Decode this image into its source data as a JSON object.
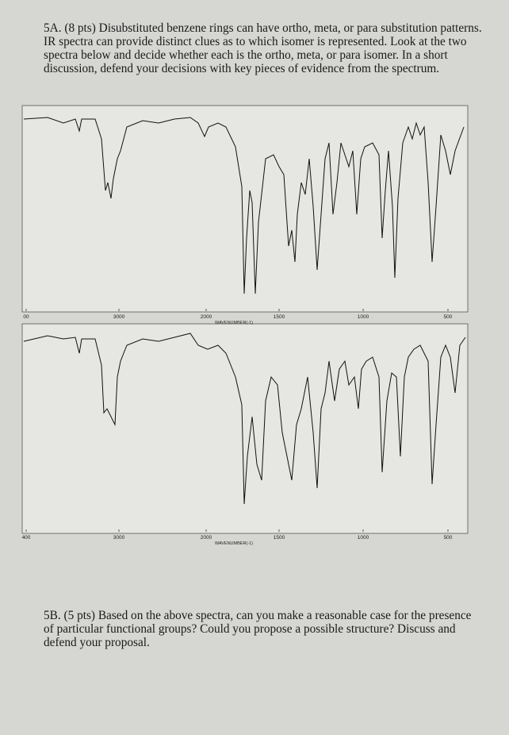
{
  "question_a": {
    "text": "5A. (8 pts) Disubstituted benzene rings can have ortho, meta, or para substitution patterns. IR spectra can provide distinct clues as to which isomer is represented. Look at the two spectra below and decide whether each is the ortho, meta, or para isomer. In a short discussion, defend your decisions with key pieces of evidence from the spectrum."
  },
  "spectra": [
    {
      "ticks": [
        "00",
        "3000",
        "2000",
        "1500",
        "1000",
        "500"
      ],
      "axis_label": "WAVENUMBER(-1)"
    },
    {
      "ticks": [
        "400",
        "3000",
        "2000",
        "1500",
        "1000",
        "500"
      ],
      "axis_label": "WAVENUMBER(-1)"
    }
  ],
  "question_b": {
    "text": "5B. (5 pts) Based on the above spectra, can you make a reasonable case for the presence of particular functional groups? Could you propose a possible structure? Discuss and defend your proposal."
  }
}
